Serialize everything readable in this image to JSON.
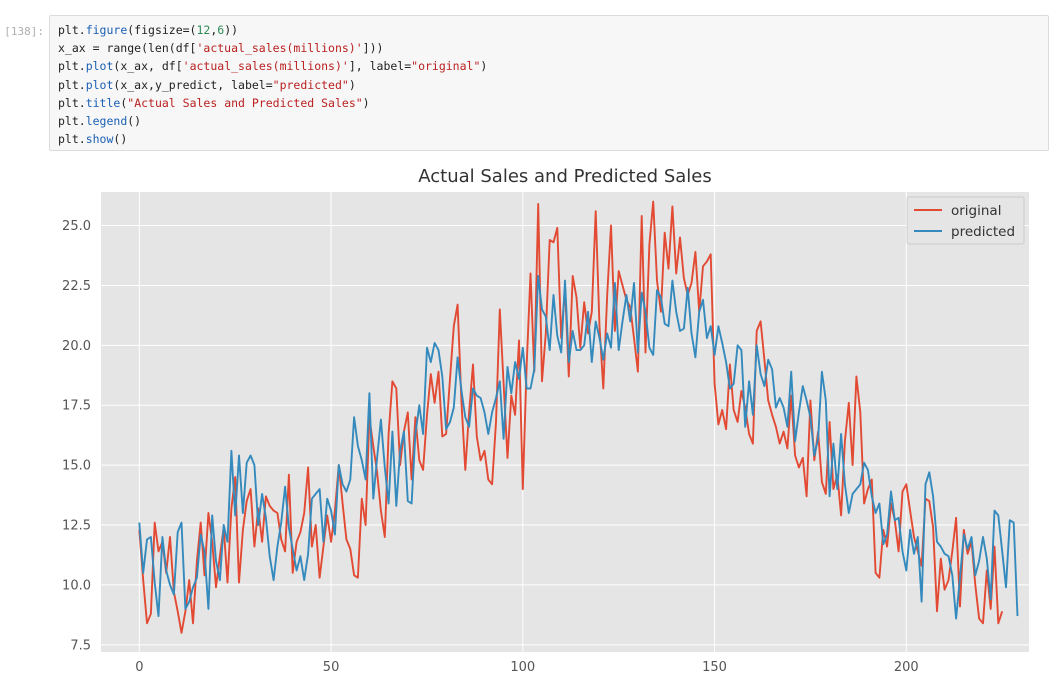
{
  "cell": {
    "prompt": "[138]:",
    "code_lines": [
      [
        {
          "t": "plt."
        },
        {
          "t": "figure",
          "c": "fn"
        },
        {
          "t": "(figsize=("
        },
        {
          "t": "12",
          "c": "num"
        },
        {
          "t": ","
        },
        {
          "t": "6",
          "c": "num"
        },
        {
          "t": "))"
        }
      ],
      [
        {
          "t": "x_ax = range(len(df["
        },
        {
          "t": "'actual_sales(millions)'",
          "c": "str"
        },
        {
          "t": "]))"
        }
      ],
      [
        {
          "t": "plt."
        },
        {
          "t": "plot",
          "c": "fn"
        },
        {
          "t": "(x_ax, df["
        },
        {
          "t": "'actual_sales(millions)'",
          "c": "str"
        },
        {
          "t": "], label="
        },
        {
          "t": "\"original\"",
          "c": "str"
        },
        {
          "t": ")"
        }
      ],
      [
        {
          "t": "plt."
        },
        {
          "t": "plot",
          "c": "fn"
        },
        {
          "t": "(x_ax,y_predict, label="
        },
        {
          "t": "\"predicted\"",
          "c": "str"
        },
        {
          "t": ")"
        }
      ],
      [
        {
          "t": "plt."
        },
        {
          "t": "title",
          "c": "fn"
        },
        {
          "t": "("
        },
        {
          "t": "\"Actual Sales and Predicted Sales\"",
          "c": "str"
        },
        {
          "t": ")"
        }
      ],
      [
        {
          "t": "plt."
        },
        {
          "t": "legend",
          "c": "fn"
        },
        {
          "t": "()"
        }
      ],
      [
        {
          "t": "plt."
        },
        {
          "t": "show",
          "c": "fn"
        },
        {
          "t": "()"
        }
      ]
    ]
  },
  "chart_data": {
    "type": "line",
    "title": "Actual Sales and Predicted Sales",
    "xlabel": "",
    "ylabel": "",
    "xlim": [
      -10,
      232
    ],
    "ylim": [
      7.2,
      26.4
    ],
    "x_ticks": [
      0,
      50,
      100,
      150,
      200
    ],
    "y_ticks": [
      7.5,
      10.0,
      12.5,
      15.0,
      17.5,
      20.0,
      22.5,
      25.0
    ],
    "grid": true,
    "legend": "top-right",
    "series": [
      {
        "name": "original",
        "color": "#e24a33",
        "values": [
          12.3,
          10.2,
          8.4,
          8.8,
          12.6,
          11.4,
          11.8,
          10.5,
          12.0,
          9.7,
          8.9,
          8.0,
          8.9,
          10.2,
          8.4,
          11.0,
          12.6,
          10.4,
          13.0,
          11.8,
          9.9,
          11.2,
          12.4,
          10.1,
          13.2,
          14.5,
          10.1,
          12.3,
          13.5,
          14.0,
          11.6,
          13.2,
          11.8,
          13.7,
          13.3,
          13.1,
          13.0,
          11.9,
          11.4,
          14.6,
          10.5,
          11.8,
          12.2,
          13.0,
          14.9,
          11.6,
          12.5,
          10.3,
          11.6,
          12.9,
          11.8,
          13.1,
          15.0,
          13.4,
          11.9,
          11.5,
          10.4,
          10.3,
          13.6,
          12.5,
          17.0,
          15.8,
          14.7,
          13.1,
          12.0,
          16.3,
          18.5,
          18.2,
          15.0,
          16.4,
          17.2,
          14.4,
          17.0,
          15.2,
          14.8,
          17.1,
          18.8,
          17.6,
          18.9,
          16.2,
          16.3,
          18.6,
          20.8,
          21.7,
          17.6,
          14.8,
          17.2,
          19.2,
          16.2,
          15.2,
          15.6,
          14.4,
          14.2,
          16.8,
          21.5,
          18.4,
          15.3,
          17.9,
          17.1,
          20.2,
          14.0,
          19.2,
          23.0,
          18.9,
          25.9,
          18.5,
          20.5,
          24.4,
          24.3,
          24.9,
          20.3,
          22.4,
          18.7,
          22.9,
          22.0,
          19.9,
          21.8,
          20.5,
          21.4,
          25.6,
          20.8,
          18.2,
          22.1,
          25.0,
          20.6,
          23.1,
          22.5,
          21.9,
          21.6,
          20.3,
          18.9,
          25.4,
          19.7,
          24.2,
          26.0,
          22.7,
          21.4,
          24.7,
          23.2,
          25.8,
          23.0,
          24.5,
          22.8,
          22.1,
          22.6,
          23.9,
          21.4,
          23.3,
          23.5,
          23.8,
          18.4,
          16.7,
          17.3,
          16.5,
          19.2,
          17.3,
          16.8,
          18.1,
          17.4,
          16.3,
          15.9,
          20.6,
          21.0,
          19.4,
          17.7,
          17.1,
          16.6,
          15.9,
          16.4,
          15.7,
          17.9,
          15.4,
          14.9,
          15.3,
          13.7,
          17.7,
          15.2,
          16.4,
          14.3,
          13.8,
          16.8,
          14.0,
          14.6,
          12.9,
          16.0,
          17.6,
          15.0,
          18.7,
          17.2,
          13.4,
          14.0,
          14.4,
          10.5,
          10.3,
          12.3,
          11.6,
          13.4,
          12.7,
          11.4,
          13.9,
          14.2,
          13.1,
          12.0,
          11.4,
          10.8,
          13.6,
          13.5,
          12.4,
          8.9,
          11.1,
          9.8,
          10.2,
          11.4,
          12.8,
          9.1,
          12.3,
          11.3,
          11.8,
          10.0,
          8.6,
          8.4,
          10.6,
          9.0,
          11.6,
          8.4,
          8.9
        ]
      },
      {
        "name": "predicted",
        "color": "#348abd",
        "values": [
          12.6,
          10.5,
          11.9,
          12.0,
          10.1,
          8.7,
          12.0,
          10.6,
          10.0,
          9.6,
          12.2,
          12.6,
          9.0,
          9.3,
          9.9,
          10.3,
          12.1,
          11.4,
          9.0,
          12.9,
          11.0,
          10.2,
          12.5,
          11.8,
          15.6,
          12.9,
          15.4,
          13.0,
          15.1,
          15.4,
          15.0,
          12.5,
          13.8,
          12.8,
          11.2,
          10.2,
          11.6,
          12.6,
          14.1,
          12.4,
          11.5,
          10.6,
          11.2,
          10.2,
          11.3,
          13.6,
          13.8,
          14.0,
          11.8,
          13.6,
          13.1,
          12.1,
          15.0,
          14.2,
          13.9,
          14.4,
          17.0,
          15.8,
          15.2,
          14.4,
          18.0,
          13.6,
          15.3,
          16.9,
          14.9,
          13.4,
          16.4,
          13.3,
          15.6,
          16.4,
          13.5,
          13.4,
          16.3,
          17.5,
          16.3,
          19.9,
          19.3,
          20.1,
          19.8,
          18.7,
          16.5,
          16.8,
          17.4,
          19.5,
          18.1,
          17.0,
          16.6,
          18.2,
          17.9,
          17.8,
          17.2,
          16.3,
          17.2,
          17.8,
          18.5,
          16.1,
          19.1,
          18.0,
          19.3,
          18.6,
          19.9,
          18.2,
          18.2,
          19.0,
          22.9,
          21.5,
          21.2,
          19.8,
          22.1,
          20.4,
          19.7,
          22.7,
          19.3,
          20.6,
          19.8,
          19.8,
          20.0,
          21.4,
          19.3,
          21.0,
          20.3,
          19.4,
          20.5,
          19.9,
          22.6,
          19.8,
          21.0,
          22.1,
          21.0,
          22.6,
          19.7,
          22.2,
          21.4,
          19.9,
          19.6,
          22.3,
          22.0,
          20.9,
          20.8,
          22.7,
          21.4,
          20.6,
          20.7,
          22.4,
          20.5,
          19.5,
          21.4,
          21.9,
          20.3,
          20.8,
          19.6,
          20.8,
          20.1,
          19.3,
          18.2,
          18.4,
          20.0,
          19.8,
          16.6,
          18.5,
          17.1,
          20.0,
          18.8,
          18.3,
          19.4,
          19.0,
          17.4,
          17.8,
          17.4,
          16.6,
          18.9,
          16.0,
          17.2,
          18.3,
          17.7,
          17.0,
          15.4,
          16.1,
          18.9,
          17.7,
          13.7,
          15.9,
          14.0,
          16.3,
          14.2,
          13.0,
          13.8,
          14.0,
          14.2,
          15.1,
          14.8,
          13.7,
          13.0,
          13.4,
          11.7,
          12.1,
          13.9,
          12.7,
          12.8,
          11.4,
          10.6,
          12.3,
          11.3,
          12.0,
          9.3,
          14.2,
          14.7,
          13.7,
          11.8,
          11.6,
          11.3,
          11.2,
          10.4,
          8.6,
          10.3,
          12.1,
          11.5,
          12.0,
          10.4,
          11.0,
          12.0,
          11.1,
          9.4,
          13.1,
          12.9,
          11.4,
          9.9,
          12.7,
          12.6,
          8.7
        ]
      }
    ]
  }
}
